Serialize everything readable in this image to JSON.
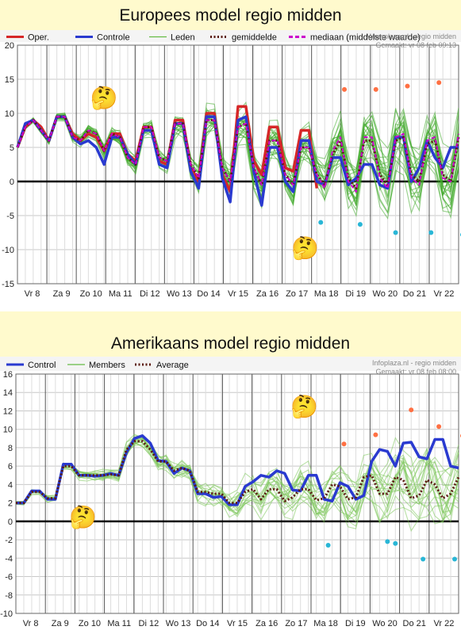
{
  "chart_data": [
    {
      "type": "line",
      "title": "Europees model regio midden",
      "source": "Weerplaza.nl - regio midden",
      "made": "Gemaakt: vr 08 feb 09:13",
      "ylim": [
        -15,
        20
      ],
      "y_ticks": [
        20,
        15,
        10,
        5,
        0,
        -5,
        -10,
        -15
      ],
      "x_ticks": [
        "Vr 8",
        "Za 9",
        "Zo 10",
        "Ma 11",
        "Di 12",
        "Wo 13",
        "Do 14",
        "Vr 15",
        "Za 16",
        "Zo 17",
        "Ma 18",
        "Di 19",
        "Wo 20",
        "Do 21",
        "Vr 22"
      ],
      "grid": true,
      "legend": [
        {
          "name": "Oper.",
          "color": "#d62728",
          "style": "solid"
        },
        {
          "name": "Controle",
          "color": "#2a3ad0",
          "style": "solid"
        },
        {
          "name": "Leden",
          "color": "#66bb44",
          "style": "solid"
        },
        {
          "name": "gemiddelde",
          "color": "#5a1a10",
          "style": "dotted"
        },
        {
          "name": "mediaan (middelste waarde)",
          "color": "#cc00cc",
          "style": "dashed"
        }
      ],
      "n_points": 57,
      "oper_end_index": 37,
      "series": [
        {
          "name": "Oper.",
          "values": [
            5,
            8,
            9,
            8,
            6,
            9.5,
            9.5,
            7,
            6,
            7,
            6.5,
            4.5,
            7,
            7,
            4,
            3,
            8,
            8,
            3,
            2.5,
            9,
            9,
            2,
            0,
            10,
            10,
            1,
            -1.5,
            11,
            11,
            3,
            1,
            8,
            8,
            2,
            1.5,
            7.5,
            7.5,
            -1
          ]
        },
        {
          "name": "Controle",
          "values": [
            5,
            8.5,
            9,
            7.5,
            6,
            9.5,
            9.5,
            6.5,
            5.5,
            6,
            5,
            2.5,
            6.5,
            6.5,
            4,
            2.5,
            7.5,
            7.5,
            2.5,
            2,
            8.5,
            8.5,
            1.5,
            -1,
            9.5,
            9.5,
            0.5,
            -3,
            9,
            9.5,
            1.5,
            -3.5,
            5,
            5,
            0,
            -1.5,
            6,
            6,
            0,
            -0.5,
            3.5,
            3.5,
            -0.5,
            0.5,
            2.5,
            2.5,
            -0.5,
            -1,
            6.5,
            6.5,
            0,
            2,
            6,
            3.5,
            2,
            5,
            5
          ]
        },
        {
          "name": "gemiddelde",
          "values": [
            5,
            8,
            9,
            7.5,
            6,
            9.5,
            9.5,
            6.5,
            6,
            7.5,
            7,
            4.5,
            7,
            6.5,
            3.5,
            2.5,
            8,
            8,
            3.5,
            3,
            8.5,
            8.5,
            2.5,
            0.5,
            9,
            9,
            2,
            0,
            8,
            8.5,
            2,
            -0.5,
            6,
            6,
            1,
            -0.5,
            5,
            5,
            1,
            -0.5,
            4,
            6,
            0.5,
            -1,
            6,
            6,
            1,
            -0.5,
            6,
            6.5,
            1,
            0,
            5.5,
            6,
            1,
            0,
            6.5
          ]
        },
        {
          "name": "mediaan (middelste waarde)",
          "values": [
            5,
            8,
            9,
            7.5,
            6,
            9.5,
            9.5,
            6.5,
            6,
            7.5,
            7,
            4.5,
            7,
            6.5,
            3.5,
            2.5,
            8,
            8,
            3.5,
            3,
            8.5,
            8.5,
            2.5,
            0.5,
            9,
            9,
            2,
            0,
            8,
            8.5,
            2,
            -0.5,
            6,
            6,
            1,
            -0.5,
            5,
            5,
            1,
            -1,
            4.5,
            6.5,
            0,
            -1.5,
            6.5,
            6.5,
            0.5,
            -1,
            6.5,
            7,
            0.5,
            -0.5,
            6,
            6.5,
            0.5,
            0,
            7
          ]
        }
      ],
      "members_spread": [
        0.3,
        0.4,
        0.4,
        0.5,
        0.6,
        0.6,
        0.6,
        0.8,
        0.9,
        1,
        1,
        1.1,
        1.2,
        1.3,
        1.4,
        1.5,
        1.6,
        1.7,
        1.8,
        1.9,
        2,
        2.1,
        2.2,
        2.3,
        2.4,
        2.5,
        2.6,
        2.7,
        2.8,
        2.9,
        3,
        3.1,
        3.2,
        3.3,
        3.4,
        3.5,
        3.6,
        3.7,
        3.8,
        3.9,
        4,
        4.1,
        4.2,
        4.3,
        4.4,
        4.5,
        4.6,
        4.7,
        4.8,
        4.9,
        5,
        5.1,
        5.2,
        5.3,
        5.4,
        5.5,
        5.6
      ],
      "extreme_points": [
        {
          "x": 41.5,
          "y": 13.5,
          "color": "#ff7043"
        },
        {
          "x": 45.5,
          "y": 13.5,
          "color": "#ff7043"
        },
        {
          "x": 49.5,
          "y": 14,
          "color": "#ff7043"
        },
        {
          "x": 53.5,
          "y": 14.5,
          "color": "#ff7043"
        },
        {
          "x": 57,
          "y": 15,
          "color": "#ff7043"
        },
        {
          "x": 38.5,
          "y": -6,
          "color": "#29b6d6"
        },
        {
          "x": 43.5,
          "y": -6.3,
          "color": "#29b6d6"
        },
        {
          "x": 48,
          "y": -7.5,
          "color": "#29b6d6"
        },
        {
          "x": 52.5,
          "y": -7.5,
          "color": "#29b6d6"
        },
        {
          "x": 56.5,
          "y": -7.8,
          "color": "#29b6d6"
        }
      ],
      "emojis": [
        {
          "symbol": "🤔",
          "x": 11,
          "y": 12
        },
        {
          "symbol": "🤔",
          "x": 36.5,
          "y": -10
        }
      ]
    },
    {
      "type": "line",
      "title": "Amerikaans model regio midden",
      "source": "Infoplaza.nl - regio midden",
      "made": "Gemaakt: vr 08 feb 08:00",
      "ylim": [
        -10,
        16
      ],
      "y_ticks": [
        16,
        14,
        12,
        10,
        8,
        6,
        4,
        2,
        0,
        -2,
        -4,
        -6,
        -8,
        -10
      ],
      "x_ticks": [
        "Vr 8",
        "Za 9",
        "Zo 10",
        "Ma 11",
        "Di 12",
        "Wo 13",
        "Do 14",
        "Vr 15",
        "Za 16",
        "Zo 17",
        "Ma 18",
        "Di 19",
        "Wo 20",
        "Do 21",
        "Vr 22"
      ],
      "grid": true,
      "legend": [
        {
          "name": "Control",
          "color": "#2a3ad0",
          "style": "solid"
        },
        {
          "name": "Members",
          "color": "#66bb44",
          "style": "solid"
        },
        {
          "name": "Average",
          "color": "#5a1a10",
          "style": "dotted"
        }
      ],
      "n_points": 57,
      "series": [
        {
          "name": "Control",
          "values": [
            2,
            2,
            3.3,
            3.3,
            2.4,
            2.4,
            6.2,
            6.2,
            5,
            5,
            4.9,
            5,
            5.2,
            5,
            7.5,
            9,
            9.3,
            8.5,
            6.6,
            6.5,
            5.2,
            5.8,
            5.5,
            3,
            3,
            2.6,
            2.7,
            1.8,
            1.8,
            3.8,
            4.3,
            5,
            4.8,
            5.5,
            5.2,
            3.4,
            3.3,
            5,
            5,
            2.4,
            2.2,
            4.2,
            3.8,
            2.4,
            2.8,
            6.5,
            7.8,
            7.6,
            6,
            8.5,
            8.6,
            7,
            6.8,
            8.9,
            8.9,
            6,
            5.8
          ]
        },
        {
          "name": "Average",
          "values": [
            2,
            2,
            3.2,
            3.2,
            2.5,
            2.5,
            6,
            6,
            5,
            5,
            5,
            5,
            5.1,
            5,
            7.8,
            8.7,
            8.7,
            7.8,
            6.5,
            6.5,
            5.5,
            5.8,
            5.5,
            3.2,
            3.2,
            3,
            3,
            2,
            2,
            3.2,
            3.5,
            2.4,
            3.5,
            3.5,
            2.2,
            2.6,
            3.5,
            3.5,
            2.3,
            2.5,
            4,
            3.8,
            2.4,
            2.6,
            4.8,
            5,
            3,
            3,
            4.8,
            4.5,
            2.5,
            2.8,
            4.5,
            4,
            2.5,
            3,
            4.8
          ]
        }
      ],
      "members_spread": [
        0.3,
        0.3,
        0.3,
        0.3,
        0.4,
        0.4,
        0.5,
        0.5,
        0.6,
        0.6,
        0.7,
        0.7,
        0.8,
        0.8,
        0.9,
        0.9,
        1,
        1,
        1.1,
        1.1,
        1.2,
        1.3,
        1.4,
        1.5,
        1.6,
        1.7,
        1.8,
        1.9,
        2,
        2.1,
        2.2,
        2.3,
        2.4,
        2.5,
        2.6,
        2.7,
        2.8,
        2.9,
        3,
        3.1,
        3.2,
        3.3,
        3.4,
        3.5,
        3.6,
        3.7,
        3.8,
        3.9,
        4,
        4.1,
        4.2,
        4.3,
        4.4,
        4.5,
        4.6,
        4.7,
        4.8
      ],
      "extreme_points": [
        {
          "x": 41.5,
          "y": 8.4,
          "color": "#ff7043"
        },
        {
          "x": 45.5,
          "y": 9.4,
          "color": "#ff7043"
        },
        {
          "x": 50,
          "y": 12.1,
          "color": "#ff7043"
        },
        {
          "x": 53.5,
          "y": 10.3,
          "color": "#ff7043"
        },
        {
          "x": 56.5,
          "y": 9.3,
          "color": "#ff7043"
        },
        {
          "x": 39.5,
          "y": -2.6,
          "color": "#29b6d6"
        },
        {
          "x": 47,
          "y": -2.2,
          "color": "#29b6d6"
        },
        {
          "x": 48,
          "y": -2.4,
          "color": "#29b6d6"
        },
        {
          "x": 51.5,
          "y": -4.1,
          "color": "#29b6d6"
        },
        {
          "x": 55.5,
          "y": -4.1,
          "color": "#29b6d6"
        }
      ],
      "emojis": [
        {
          "symbol": "🤔",
          "x": 36.5,
          "y": 12.3
        },
        {
          "symbol": "🤔",
          "x": 8.5,
          "y": 0.3
        }
      ]
    }
  ]
}
